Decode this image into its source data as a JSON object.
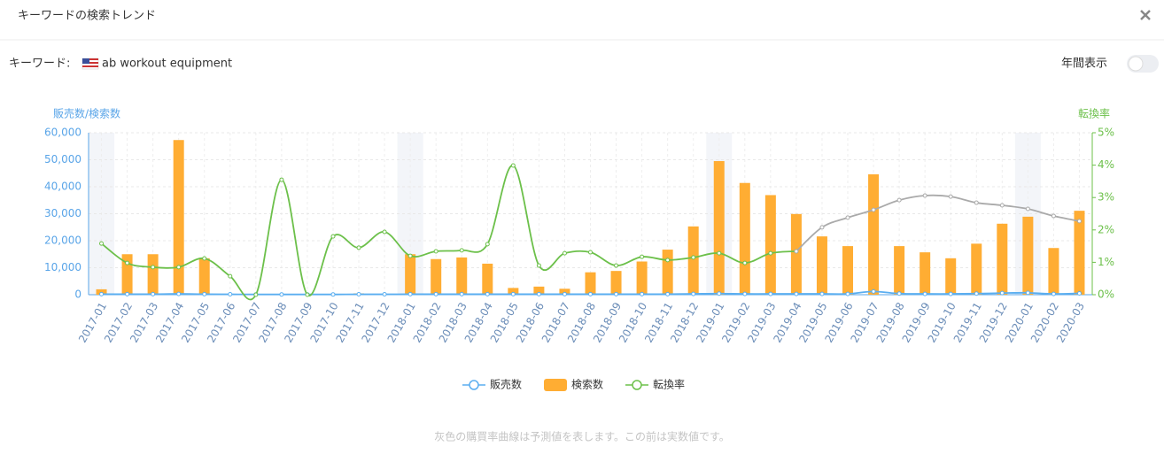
{
  "header": {
    "title": "キーワードの検索トレンド"
  },
  "keyword": {
    "label": "キーワード:",
    "value": "ab workout equipment"
  },
  "toggle": {
    "label": "年間表示"
  },
  "note": "灰色の購買率曲線は予測値を表します。この前は実数値です。",
  "chart_data": {
    "type": "bar",
    "y_label": "販売数/検索数",
    "y2_label": "転換率",
    "categories": [
      "2017-01",
      "2017-02",
      "2017-03",
      "2017-04",
      "2017-05",
      "2017-06",
      "2017-07",
      "2017-08",
      "2017-09",
      "2017-10",
      "2017-11",
      "2017-12",
      "2018-01",
      "2018-02",
      "2018-03",
      "2018-04",
      "2018-05",
      "2018-06",
      "2018-07",
      "2018-08",
      "2018-09",
      "2018-10",
      "2018-11",
      "2018-12",
      "2019-01",
      "2019-02",
      "2019-03",
      "2019-04",
      "2019-05",
      "2019-06",
      "2019-07",
      "2019-08",
      "2019-09",
      "2019-10",
      "2019-11",
      "2019-12",
      "2020-01",
      "2020-02",
      "2020-03"
    ],
    "ylim": [
      0,
      60000
    ],
    "yticks": [
      0,
      {
        "value": 10000,
        "label": "10,000"
      },
      {
        "value": 20000,
        "label": "20,000"
      },
      {
        "value": 30000,
        "label": "30,000"
      },
      {
        "value": 40000,
        "label": "40,000"
      },
      {
        "value": 50000,
        "label": "50,000"
      },
      {
        "value": 60000,
        "label": "60,000"
      }
    ],
    "y2lim": [
      0,
      5
    ],
    "y2ticks": [
      {
        "value": 0,
        "label": "0%"
      },
      {
        "value": 1,
        "label": "1%"
      },
      {
        "value": 2,
        "label": "2%"
      },
      {
        "value": 3,
        "label": "3%"
      },
      {
        "value": 4,
        "label": "4%"
      },
      {
        "value": 5,
        "label": "5%"
      }
    ],
    "grid": true,
    "legend": "bottom",
    "series": [
      {
        "name": "販売数",
        "type": "line",
        "color": "#5aaef0",
        "values": [
          200,
          200,
          200,
          300,
          200,
          150,
          100,
          100,
          100,
          100,
          150,
          150,
          200,
          200,
          200,
          200,
          200,
          200,
          200,
          200,
          200,
          200,
          200,
          300,
          400,
          300,
          300,
          300,
          300,
          300,
          1200,
          400,
          300,
          300,
          400,
          600,
          700,
          300,
          500
        ]
      },
      {
        "name": "検索数",
        "type": "bar",
        "color": "#ffad33",
        "values": [
          2000,
          15000,
          15000,
          57300,
          13500,
          0,
          0,
          0,
          0,
          0,
          500,
          0,
          15000,
          13200,
          13800,
          11500,
          2500,
          3000,
          2200,
          8300,
          8800,
          12300,
          16700,
          25300,
          49500,
          41400,
          36900,
          29900,
          21600,
          18000,
          44600,
          18000,
          15700,
          13500,
          18900,
          26300,
          28900,
          17300,
          31100
        ]
      },
      {
        "name": "転換率",
        "type": "line",
        "axis": "y2",
        "color": "#6cc04a",
        "values": [
          1.58,
          0.98,
          0.85,
          0.85,
          1.12,
          0.57,
          0,
          3.55,
          0,
          1.8,
          1.45,
          1.94,
          1.2,
          1.34,
          1.37,
          1.56,
          3.99,
          0.9,
          1.28,
          1.31,
          0.9,
          1.17,
          1.07,
          1.15,
          1.28,
          0.98,
          1.28,
          1.34,
          null,
          null,
          null,
          null,
          null,
          null,
          null,
          null,
          null,
          null,
          null
        ]
      },
      {
        "type": "line",
        "axis": "y2",
        "color": "#aaaaaa",
        "values": [
          null,
          null,
          null,
          null,
          null,
          null,
          null,
          null,
          null,
          null,
          null,
          null,
          null,
          null,
          null,
          null,
          null,
          null,
          null,
          null,
          null,
          null,
          null,
          null,
          null,
          null,
          null,
          1.34,
          2.08,
          2.38,
          2.62,
          2.92,
          3.06,
          3.03,
          2.84,
          2.76,
          2.65,
          2.43,
          2.27
        ]
      }
    ]
  }
}
